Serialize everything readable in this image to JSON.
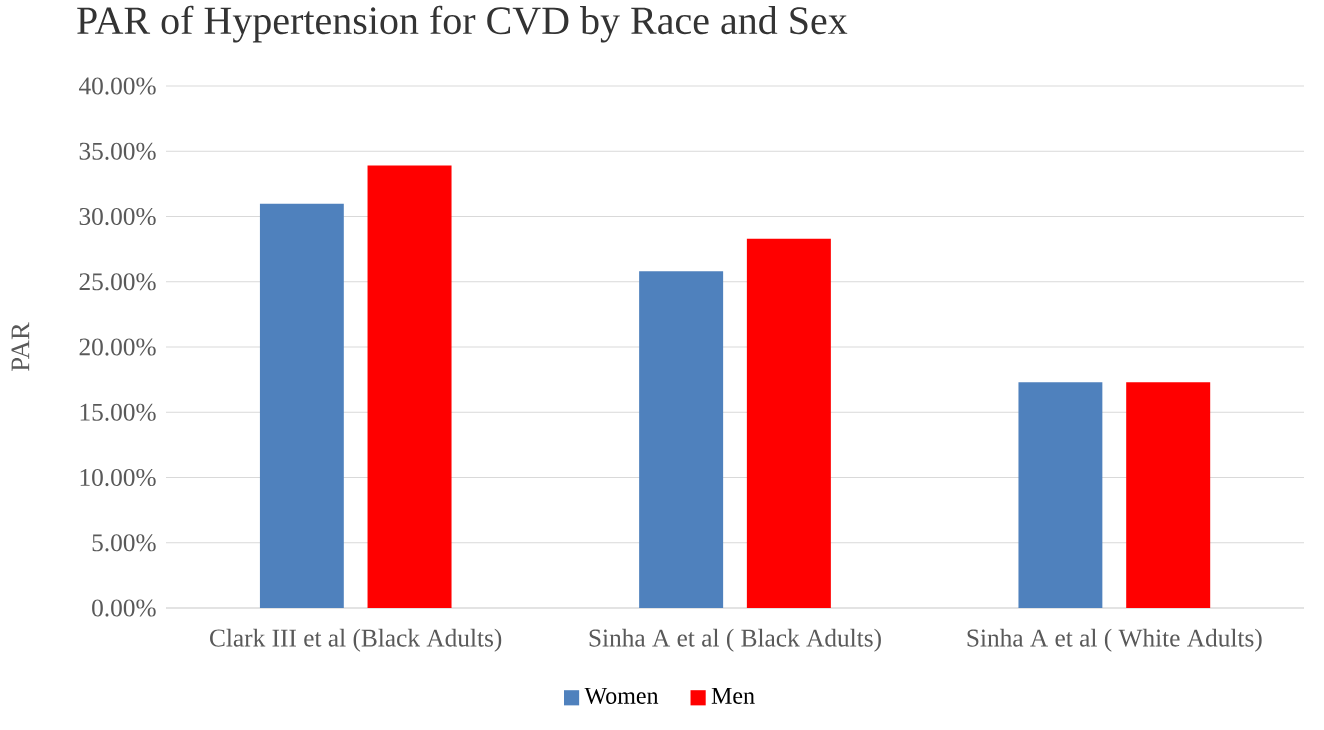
{
  "chart_data": {
    "type": "bar",
    "title": "PAR of Hypertension for CVD by Race and Sex",
    "ylabel": "PAR",
    "categories": [
      "Clark III et al (Black Adults)",
      "Sinha A et al ( Black Adults)",
      "Sinha A et al ( White Adults)"
    ],
    "series": [
      {
        "name": "Women",
        "color": "#4f81bd",
        "values": [
          31.0,
          25.8,
          17.3
        ]
      },
      {
        "name": "Men",
        "color": "#ff0000",
        "values": [
          33.9,
          28.3,
          17.3
        ]
      }
    ],
    "ylim": [
      0,
      40
    ],
    "yticks": [
      {
        "value": 0,
        "label": "0.00%"
      },
      {
        "value": 5,
        "label": "5.00%"
      },
      {
        "value": 10,
        "label": "10.00%"
      },
      {
        "value": 15,
        "label": "15.00%"
      },
      {
        "value": 20,
        "label": "20.00%"
      },
      {
        "value": 25,
        "label": "25.00%"
      },
      {
        "value": 30,
        "label": "30.00%"
      },
      {
        "value": 35,
        "label": "35.00%"
      },
      {
        "value": 40,
        "label": "40.00%"
      }
    ],
    "grid": "y",
    "legend": "bottom"
  }
}
